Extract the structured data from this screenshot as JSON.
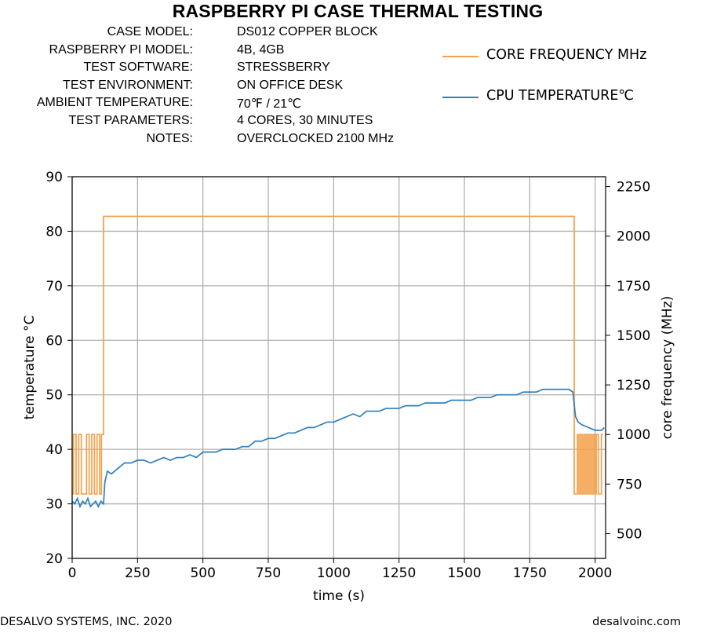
{
  "header": {
    "title": "RASPBERRY PI CASE THERMAL TESTING"
  },
  "info": [
    {
      "label": "CASE MODEL:",
      "value": "DS012 COPPER BLOCK"
    },
    {
      "label": "RASPBERRY PI MODEL:",
      "value": "4B, 4GB"
    },
    {
      "label": "TEST SOFTWARE:",
      "value": "STRESSBERRY"
    },
    {
      "label": "TEST ENVIRONMENT:",
      "value": "ON OFFICE DESK"
    },
    {
      "label": "AMBIENT TEMPERATURE:",
      "value": "70℉ / 21℃"
    },
    {
      "label": "TEST PARAMETERS:",
      "value": "4 CORES, 30 MINUTES"
    },
    {
      "label": "NOTES:",
      "value": "OVERCLOCKED 2100 MHz"
    }
  ],
  "legend": [
    {
      "label": "CORE FREQUENCY MHz",
      "color": "#f5a04a"
    },
    {
      "label": "CPU TEMPERATURE℃",
      "color": "#2f7fbf"
    }
  ],
  "footer": {
    "left": "DESALVO SYSTEMS, INC.  2020",
    "right": "desalvoinc.com"
  },
  "chart_data": {
    "type": "line",
    "xlabel": "time (s)",
    "ylabel": "temperature °C",
    "y2label": "core frequency (MHz)",
    "xlim": [
      0,
      2040
    ],
    "ylim": [
      20,
      90
    ],
    "y2lim": [
      375,
      2300
    ],
    "xticks": [
      0,
      250,
      500,
      750,
      1000,
      1250,
      1500,
      1750,
      2000
    ],
    "yticks": [
      20,
      30,
      40,
      50,
      60,
      70,
      80,
      90
    ],
    "y2ticks": [
      500,
      750,
      1000,
      1250,
      1500,
      1750,
      2000,
      2250
    ],
    "grid": true,
    "series": [
      {
        "name": "CORE FREQUENCY MHz",
        "axis": "right",
        "color": "#f5a04a",
        "x": [
          0,
          5,
          5,
          15,
          15,
          25,
          25,
          35,
          35,
          45,
          45,
          55,
          55,
          65,
          65,
          75,
          75,
          85,
          85,
          95,
          95,
          105,
          105,
          112,
          112,
          120,
          120,
          1920,
          1920,
          1932,
          1932,
          1938,
          1938,
          1944,
          1944,
          1950,
          1950,
          1956,
          1956,
          1962,
          1962,
          1968,
          1968,
          1974,
          1974,
          1980,
          1980,
          1986,
          1986,
          1992,
          1992,
          1998,
          1998,
          2004,
          2004,
          2012,
          2012,
          2024,
          2024,
          2030
        ],
        "values": [
          700,
          700,
          1000,
          1000,
          700,
          700,
          1000,
          1000,
          700,
          700,
          700,
          700,
          1000,
          1000,
          700,
          700,
          1000,
          1000,
          700,
          700,
          1000,
          1000,
          700,
          700,
          1000,
          1000,
          2100,
          2100,
          700,
          700,
          1000,
          1000,
          700,
          700,
          1000,
          1000,
          700,
          700,
          1000,
          1000,
          700,
          700,
          1000,
          1000,
          700,
          700,
          1000,
          1000,
          700,
          700,
          1000,
          1000,
          700,
          700,
          1000,
          1000,
          700,
          700,
          1000,
          1000
        ]
      },
      {
        "name": "CPU TEMPERATURE℃",
        "axis": "left",
        "color": "#2f7fbf",
        "x": [
          0,
          10,
          20,
          30,
          40,
          50,
          60,
          70,
          80,
          90,
          100,
          110,
          120,
          125,
          135,
          150,
          175,
          200,
          225,
          250,
          275,
          300,
          325,
          350,
          375,
          400,
          425,
          450,
          475,
          500,
          525,
          550,
          575,
          600,
          625,
          650,
          675,
          700,
          725,
          750,
          775,
          800,
          825,
          850,
          875,
          900,
          925,
          950,
          975,
          1000,
          1025,
          1050,
          1075,
          1100,
          1125,
          1150,
          1175,
          1200,
          1225,
          1250,
          1275,
          1300,
          1325,
          1350,
          1375,
          1400,
          1425,
          1450,
          1475,
          1500,
          1525,
          1550,
          1575,
          1600,
          1625,
          1650,
          1675,
          1700,
          1725,
          1750,
          1775,
          1800,
          1825,
          1850,
          1875,
          1900,
          1915,
          1925,
          1935,
          1950,
          1975,
          2000,
          2025,
          2035
        ],
        "values": [
          30.5,
          30,
          31,
          29.5,
          30.5,
          30,
          31,
          29.5,
          30,
          30.5,
          29.5,
          30.5,
          30,
          34,
          36,
          35.5,
          36.5,
          37.5,
          37.5,
          38,
          38,
          37.5,
          38,
          38.5,
          38,
          38.5,
          38.5,
          39,
          38.5,
          39.5,
          39.5,
          39.5,
          40,
          40,
          40,
          40.5,
          40.5,
          41.5,
          41.5,
          42,
          42,
          42.5,
          43,
          43,
          43.5,
          44,
          44,
          44.5,
          45,
          45,
          45.5,
          46,
          46.5,
          46,
          47,
          47,
          47,
          47.5,
          47.5,
          47.5,
          48,
          48,
          48,
          48.5,
          48.5,
          48.5,
          48.5,
          49,
          49,
          49,
          49,
          49.5,
          49.5,
          49.5,
          50,
          50,
          50,
          50,
          50.5,
          50.5,
          50.5,
          51,
          51,
          51,
          51,
          51,
          50.5,
          46,
          45,
          44.5,
          44,
          43.5,
          43.5,
          44
        ]
      }
    ]
  }
}
